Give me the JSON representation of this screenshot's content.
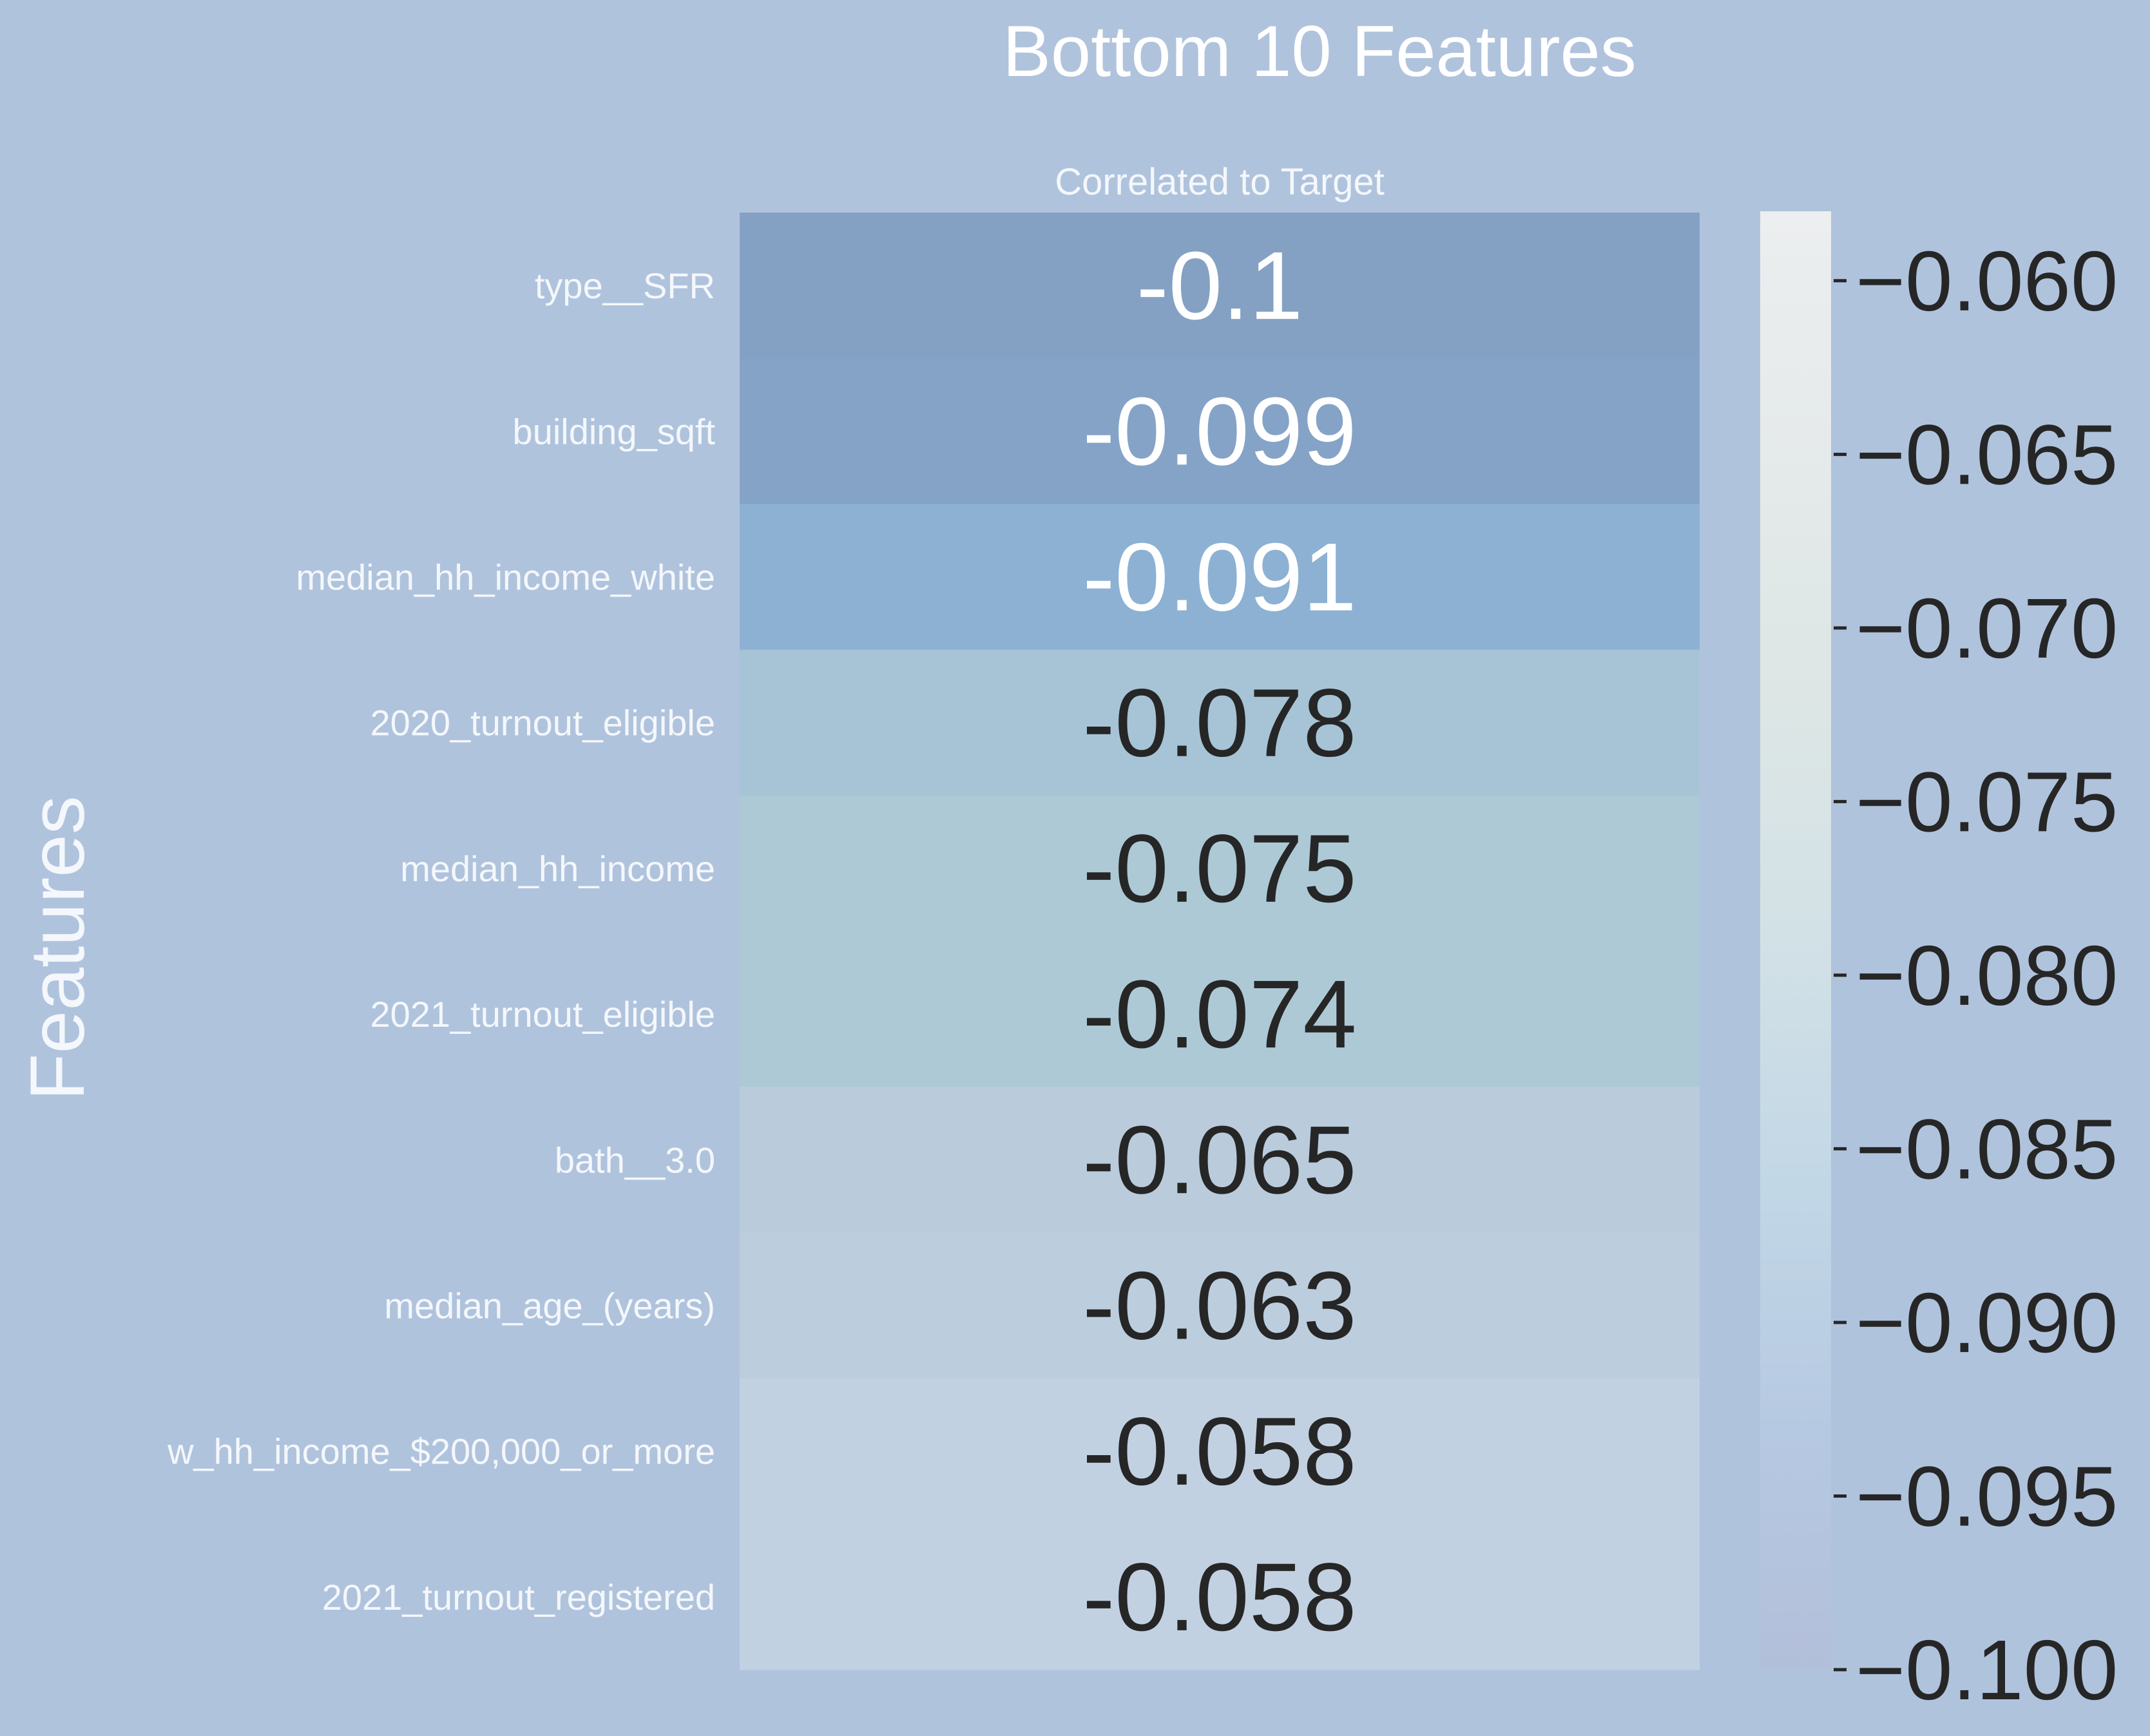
{
  "chart_data": {
    "type": "heatmap",
    "title": "Bottom 10 Features",
    "column_label": "Correlated to Target",
    "ylabel": "Features",
    "rows": [
      {
        "feature": "type__SFR",
        "value": -0.1,
        "label": "-0.1"
      },
      {
        "feature": "building_sqft",
        "value": -0.099,
        "label": "-0.099"
      },
      {
        "feature": "median_hh_income_white",
        "value": -0.091,
        "label": "-0.091"
      },
      {
        "feature": "2020_turnout_eligible",
        "value": -0.078,
        "label": "-0.078"
      },
      {
        "feature": "median_hh_income",
        "value": -0.075,
        "label": "-0.075"
      },
      {
        "feature": "2021_turnout_eligible",
        "value": -0.074,
        "label": "-0.074"
      },
      {
        "feature": "bath__3.0",
        "value": -0.065,
        "label": "-0.065"
      },
      {
        "feature": "median_age_(years)",
        "value": -0.063,
        "label": "-0.063"
      },
      {
        "feature": "w_hh_income_$200,000_or_more",
        "value": -0.058,
        "label": "-0.058"
      },
      {
        "feature": "2021_turnout_registered",
        "value": -0.058,
        "label": "-0.058"
      }
    ],
    "colorbar": {
      "range": [
        -0.1,
        -0.058
      ],
      "ticks": [
        -0.1,
        -0.095,
        -0.09,
        -0.085,
        -0.08,
        -0.075,
        -0.07,
        -0.065,
        -0.06
      ],
      "tick_labels": [
        "−0.100",
        "−0.095",
        "−0.090",
        "−0.085",
        "−0.080",
        "−0.075",
        "−0.070",
        "−0.065",
        "−0.060"
      ]
    },
    "colors": {
      "background": "#b0c3dd",
      "dark_text": "#262626",
      "light_text": "#ffffff",
      "colormap": [
        "#b3bfda",
        "#b6c9e2",
        "#c2d7e6",
        "#d2e1e6",
        "#dde6e5",
        "#e5eaea",
        "#eceeef"
      ]
    }
  }
}
